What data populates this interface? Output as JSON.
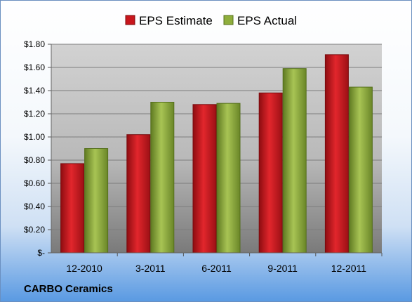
{
  "chart_data": {
    "type": "bar",
    "categories": [
      "12-2010",
      "3-2011",
      "6-2011",
      "9-2011",
      "12-2011"
    ],
    "series": [
      {
        "name": "EPS Estimate",
        "values": [
          0.77,
          1.02,
          1.28,
          1.38,
          1.71
        ],
        "color": "#c8161c"
      },
      {
        "name": "EPS Actual",
        "values": [
          0.9,
          1.3,
          1.29,
          1.59,
          1.43
        ],
        "color": "#8fae3c"
      }
    ],
    "ylim": [
      0,
      1.8
    ],
    "yticks": [
      {
        "value": 0,
        "label": "$-"
      },
      {
        "value": 0.2,
        "label": "$0.20"
      },
      {
        "value": 0.4,
        "label": "$0.40"
      },
      {
        "value": 0.6,
        "label": "$0.60"
      },
      {
        "value": 0.8,
        "label": "$0.80"
      },
      {
        "value": 1.0,
        "label": "$1.00"
      },
      {
        "value": 1.2,
        "label": "$1.20"
      },
      {
        "value": 1.4,
        "label": "$1.40"
      },
      {
        "value": 1.6,
        "label": "$1.60"
      },
      {
        "value": 1.8,
        "label": "$1.80"
      }
    ],
    "grid": true,
    "legend": "top",
    "annotation": "CARBO Ceramics"
  }
}
